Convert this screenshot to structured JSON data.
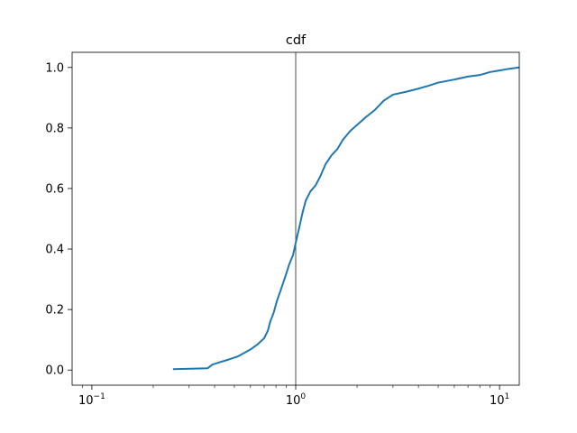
{
  "chart_data": {
    "type": "line",
    "title": "cdf",
    "xlabel": "",
    "ylabel": "",
    "x_scale": "log",
    "xlim": [
      0.08,
      12.5
    ],
    "ylim": [
      -0.05,
      1.05
    ],
    "grid": false,
    "reference_line_x": 1.0,
    "colors": {
      "series": "#1f77b4",
      "axis": "#000000",
      "reference_line": "#000000"
    },
    "x_ticks": [
      {
        "value": 0.1,
        "base": "10",
        "exp": "−1"
      },
      {
        "value": 1,
        "base": "10",
        "exp": "0"
      },
      {
        "value": 10,
        "base": "10",
        "exp": "1"
      }
    ],
    "y_ticks": [
      {
        "value": 0.0,
        "label": "0.0"
      },
      {
        "value": 0.2,
        "label": "0.2"
      },
      {
        "value": 0.4,
        "label": "0.4"
      },
      {
        "value": 0.6,
        "label": "0.6"
      },
      {
        "value": 0.8,
        "label": "0.8"
      },
      {
        "value": 1.0,
        "label": "1.0"
      }
    ],
    "series": [
      {
        "x": [
          0.25,
          0.37,
          0.39,
          0.42,
          0.47,
          0.52,
          0.56,
          0.6,
          0.65,
          0.7,
          0.73,
          0.75,
          0.78,
          0.81,
          0.84,
          0.87,
          0.9,
          0.93,
          0.97,
          1.0,
          1.04,
          1.08,
          1.12,
          1.18,
          1.25,
          1.32,
          1.4,
          1.5,
          1.6,
          1.7,
          1.85,
          2.0,
          2.2,
          2.45,
          2.7,
          3.0,
          3.5,
          4.0,
          4.5,
          5.0,
          6.0,
          7.0,
          8.0,
          9.0,
          10.0,
          11.0,
          12.5
        ],
        "y": [
          0.003,
          0.006,
          0.018,
          0.025,
          0.035,
          0.045,
          0.057,
          0.068,
          0.085,
          0.105,
          0.13,
          0.16,
          0.19,
          0.23,
          0.26,
          0.29,
          0.32,
          0.35,
          0.38,
          0.42,
          0.47,
          0.52,
          0.56,
          0.59,
          0.61,
          0.64,
          0.68,
          0.71,
          0.73,
          0.76,
          0.79,
          0.81,
          0.835,
          0.86,
          0.89,
          0.91,
          0.92,
          0.93,
          0.94,
          0.95,
          0.96,
          0.97,
          0.975,
          0.985,
          0.99,
          0.995,
          1.0
        ]
      }
    ]
  }
}
